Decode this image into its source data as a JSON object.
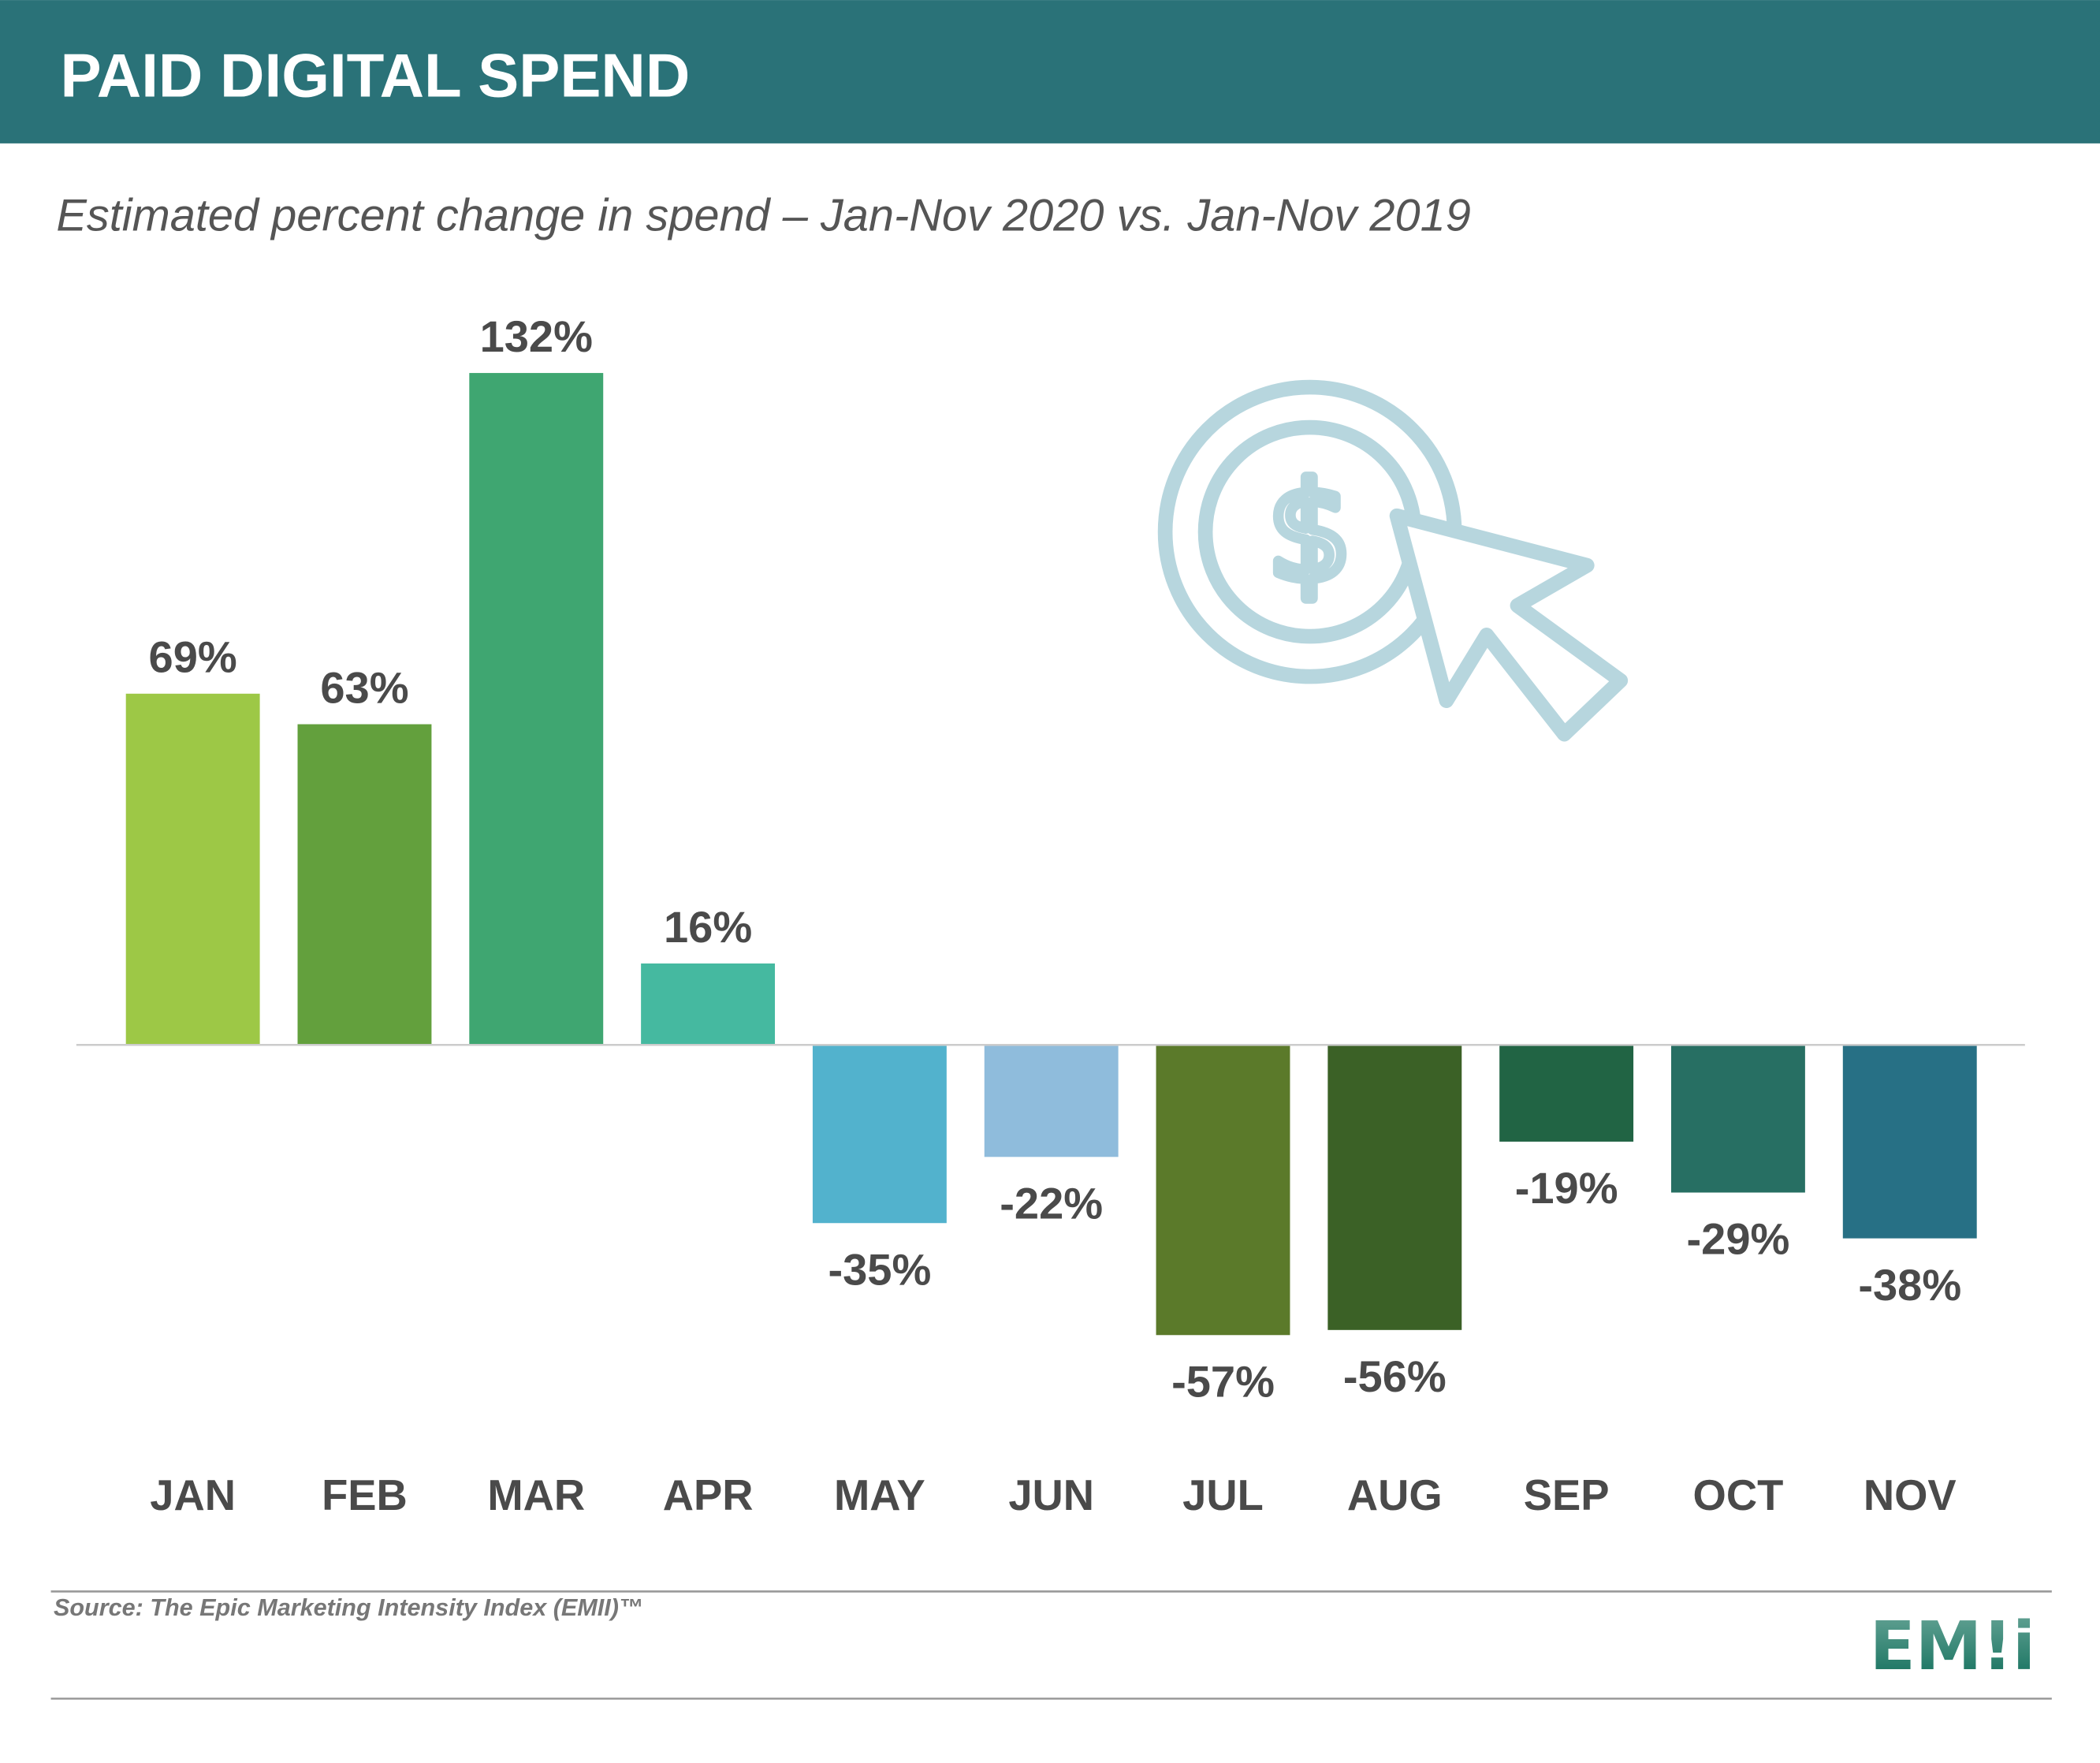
{
  "header": {
    "title": "PAID DIGITAL SPEND",
    "color": "#2a7278"
  },
  "chart_data": {
    "type": "bar",
    "title": "PAID DIGITAL SPEND",
    "subtitle": "Estimated percent change in spend – Jan-Nov 2020 vs. Jan-Nov 2019",
    "categories": [
      "JAN",
      "FEB",
      "MAR",
      "APR",
      "MAY",
      "JUN",
      "JUL",
      "AUG",
      "SEP",
      "OCT",
      "NOV"
    ],
    "values": [
      69,
      63,
      132,
      16,
      -35,
      -22,
      -57,
      -56,
      -19,
      -29,
      -38
    ],
    "labels": [
      "69%",
      "63%",
      "132%",
      "16%",
      "-35%",
      "-22%",
      "-57%",
      "-56%",
      "-19%",
      "-29%",
      "-38%"
    ],
    "colors": [
      "#9dc846",
      "#63a03d",
      "#3fa671",
      "#45b9a0",
      "#52b2cd",
      "#8fbcdc",
      "#5b7a2a",
      "#3b6126",
      "#216444",
      "#276f63",
      "#277085"
    ],
    "xlabel": "",
    "ylabel": "",
    "grid": false
  },
  "icon": {
    "name": "dollar-click-icon",
    "color": "#b7d6de"
  },
  "footer": {
    "source": "Source: The Epic Marketing Intensity Index (EMII)™",
    "logo_text": "EM!i"
  }
}
